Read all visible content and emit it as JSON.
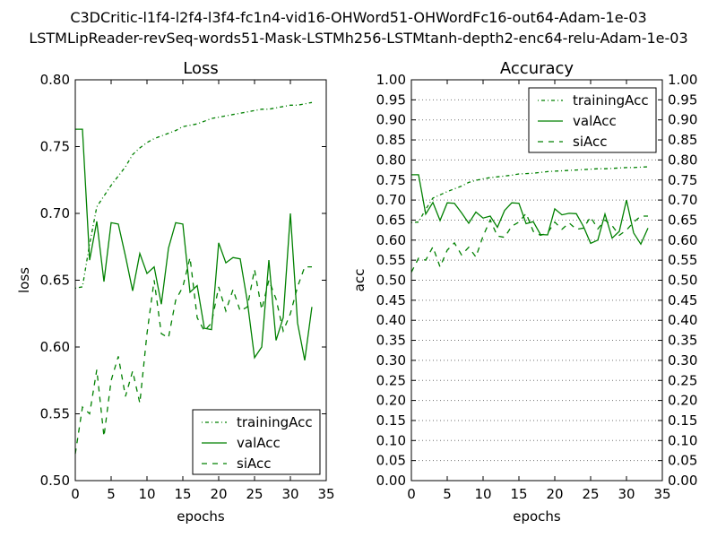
{
  "suptitle": [
    "C3DCritic-l1f4-l2f4-l3f4-fc1n4-vid16-OHWord51-OHWordFc16-out64-Adam-1e-03",
    "LSTMLipReader-revSeq-words51-Mask-LSTMh256-LSTMtanh-depth2-enc64-relu-Adam-1e-03"
  ],
  "colors": {
    "series": "#008000",
    "grid": "#bfbfbf",
    "axis": "#000000"
  },
  "chart_data": [
    {
      "type": "line",
      "title": "Loss",
      "xlabel": "epochs",
      "ylabel": "loss",
      "xlim": [
        0,
        35
      ],
      "ylim": [
        0.5,
        0.8
      ],
      "xticks": [
        "0",
        "5",
        "10",
        "15",
        "20",
        "25",
        "30",
        "35"
      ],
      "yticks": [
        "0.50",
        "0.55",
        "0.60",
        "0.65",
        "0.70",
        "0.75",
        "0.80"
      ],
      "grid": false,
      "legend_position": "lower-right",
      "x": [
        0,
        1,
        2,
        3,
        4,
        5,
        6,
        7,
        8,
        9,
        10,
        11,
        12,
        13,
        14,
        15,
        16,
        17,
        18,
        19,
        20,
        21,
        22,
        23,
        24,
        25,
        26,
        27,
        28,
        29,
        30,
        31,
        32,
        33
      ],
      "series": [
        {
          "name": "trainingAcc",
          "style": "dotted",
          "values": [
            0.644,
            0.645,
            0.677,
            0.705,
            0.713,
            0.721,
            0.728,
            0.735,
            0.744,
            0.749,
            0.753,
            0.756,
            0.758,
            0.76,
            0.762,
            0.765,
            0.766,
            0.767,
            0.769,
            0.771,
            0.772,
            0.773,
            0.774,
            0.775,
            0.776,
            0.777,
            0.778,
            0.778,
            0.779,
            0.78,
            0.781,
            0.781,
            0.782,
            0.783
          ]
        },
        {
          "name": "valAcc",
          "style": "solid",
          "values": [
            0.763,
            0.763,
            0.665,
            0.694,
            0.649,
            0.693,
            0.692,
            0.668,
            0.642,
            0.67,
            0.655,
            0.66,
            0.632,
            0.674,
            0.693,
            0.692,
            0.641,
            0.646,
            0.614,
            0.613,
            0.678,
            0.663,
            0.667,
            0.666,
            0.634,
            0.592,
            0.6,
            0.665,
            0.605,
            0.622,
            0.7,
            0.618,
            0.59,
            0.63
          ]
        },
        {
          "name": "siAcc",
          "style": "dashed",
          "values": [
            0.52,
            0.555,
            0.55,
            0.583,
            0.533,
            0.575,
            0.593,
            0.563,
            0.582,
            0.558,
            0.61,
            0.65,
            0.61,
            0.607,
            0.635,
            0.645,
            0.667,
            0.622,
            0.612,
            0.618,
            0.645,
            0.627,
            0.643,
            0.627,
            0.63,
            0.658,
            0.628,
            0.65,
            0.636,
            0.612,
            0.625,
            0.645,
            0.66,
            0.66
          ]
        }
      ]
    },
    {
      "type": "line",
      "title": "Accuracy",
      "xlabel": "epochs",
      "ylabel": "acc",
      "xlim": [
        0,
        35
      ],
      "ylim": [
        0.0,
        1.0
      ],
      "xticks": [
        "0",
        "5",
        "10",
        "15",
        "20",
        "25",
        "30",
        "35"
      ],
      "yticks": [
        "0.00",
        "0.05",
        "0.10",
        "0.15",
        "0.20",
        "0.25",
        "0.30",
        "0.35",
        "0.40",
        "0.45",
        "0.50",
        "0.55",
        "0.60",
        "0.65",
        "0.70",
        "0.75",
        "0.80",
        "0.85",
        "0.90",
        "0.95",
        "1.00"
      ],
      "grid": true,
      "right_axis_duplicate": true,
      "legend_position": "upper-right",
      "x": [
        0,
        1,
        2,
        3,
        4,
        5,
        6,
        7,
        8,
        9,
        10,
        11,
        12,
        13,
        14,
        15,
        16,
        17,
        18,
        19,
        20,
        21,
        22,
        23,
        24,
        25,
        26,
        27,
        28,
        29,
        30,
        31,
        32,
        33
      ],
      "series": [
        {
          "name": "trainingAcc",
          "style": "dotted",
          "values": [
            0.644,
            0.645,
            0.677,
            0.705,
            0.713,
            0.721,
            0.728,
            0.735,
            0.744,
            0.749,
            0.753,
            0.756,
            0.758,
            0.76,
            0.762,
            0.765,
            0.766,
            0.767,
            0.769,
            0.771,
            0.772,
            0.773,
            0.774,
            0.775,
            0.776,
            0.777,
            0.778,
            0.778,
            0.779,
            0.78,
            0.781,
            0.781,
            0.782,
            0.783
          ]
        },
        {
          "name": "valAcc",
          "style": "solid",
          "values": [
            0.763,
            0.763,
            0.665,
            0.694,
            0.649,
            0.693,
            0.692,
            0.668,
            0.642,
            0.67,
            0.655,
            0.66,
            0.632,
            0.674,
            0.693,
            0.692,
            0.641,
            0.646,
            0.614,
            0.613,
            0.678,
            0.663,
            0.667,
            0.666,
            0.634,
            0.592,
            0.6,
            0.665,
            0.605,
            0.622,
            0.7,
            0.618,
            0.59,
            0.63
          ]
        },
        {
          "name": "siAcc",
          "style": "dashed",
          "values": [
            0.52,
            0.555,
            0.55,
            0.583,
            0.533,
            0.575,
            0.593,
            0.563,
            0.582,
            0.558,
            0.61,
            0.65,
            0.61,
            0.607,
            0.635,
            0.645,
            0.667,
            0.622,
            0.612,
            0.618,
            0.645,
            0.627,
            0.643,
            0.627,
            0.63,
            0.658,
            0.628,
            0.65,
            0.636,
            0.612,
            0.625,
            0.645,
            0.66,
            0.66
          ]
        }
      ]
    }
  ]
}
